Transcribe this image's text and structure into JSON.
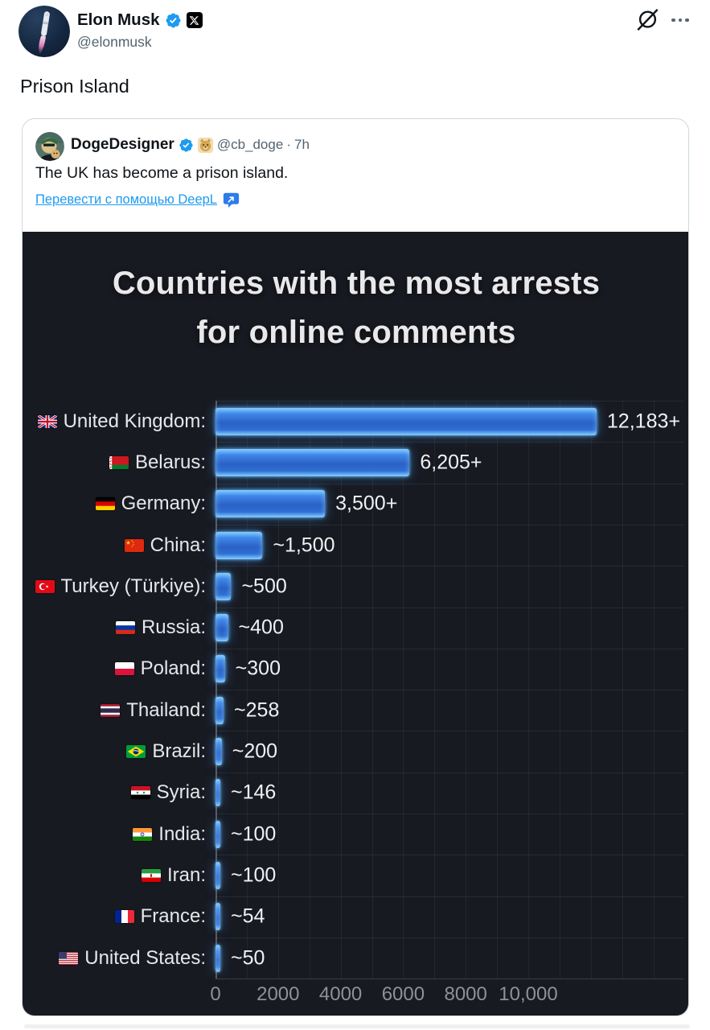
{
  "tweet": {
    "author": {
      "name": "Elon Musk",
      "handle": "@elonmusk",
      "verified": true
    },
    "text": "Prison Island"
  },
  "quoted_tweet": {
    "author": {
      "name": "DogeDesigner",
      "handle": "@cb_doge",
      "separator": "·",
      "timestamp": "7h",
      "verified": true
    },
    "text": "The UK has become a prison island.",
    "translate": {
      "label": "Перевести с помощью DeepL"
    }
  },
  "chart_data": {
    "type": "bar",
    "orientation": "horizontal",
    "title": "Countries with the most arrests for online comments",
    "title_lines": [
      "Countries with the most arrests",
      "for online comments"
    ],
    "categories": [
      "United Kingdom",
      "Belarus",
      "Germany",
      "China",
      "Turkey (Türkiye)",
      "Russia",
      "Poland",
      "Thailand",
      "Brazil",
      "Syria",
      "India",
      "Iran",
      "France",
      "United States"
    ],
    "row_labels": [
      "United Kingdom:",
      "Belarus:",
      "Germany:",
      "China:",
      "Turkey (Türkiye):",
      "Russia:",
      "Poland:",
      "Thailand:",
      "Brazil:",
      "Syria:",
      "India:",
      "Iran:",
      "France:",
      "United States:"
    ],
    "values": [
      12183,
      6205,
      3500,
      1500,
      500,
      400,
      300,
      258,
      200,
      146,
      100,
      100,
      54,
      50
    ],
    "value_labels": [
      "12,183+",
      "6,205+",
      "3,500+",
      "~1,500",
      "~500",
      "~400",
      "~300",
      "~258",
      "~200",
      "~146",
      "~100",
      "~100",
      "~54",
      "~50"
    ],
    "flags": [
      "gb",
      "by",
      "de",
      "cn",
      "tr",
      "ru",
      "pl",
      "th",
      "br",
      "sy",
      "in",
      "ir",
      "fr",
      "us"
    ],
    "x_ticks": [
      0,
      2000,
      4000,
      6000,
      8000,
      10000
    ],
    "x_tick_labels": [
      "0",
      "2000",
      "4000",
      "6000",
      "8000",
      "10,000"
    ],
    "xlim": [
      0,
      15000
    ],
    "grid": true,
    "legend": false,
    "colors": {
      "background": "#181a21",
      "bar": "#2f6fd4",
      "bar_glow": "#6cc4ff",
      "label_text": "#e6e7ea",
      "value_text": "#f0f1f3",
      "tick_text": "#8e9199",
      "gridline": "rgba(255,255,255,0.07)"
    }
  },
  "colors": {
    "accent": "#1d9bf0",
    "text": "#0f1419",
    "secondary": "#536471",
    "card_border": "#cfd9de"
  }
}
